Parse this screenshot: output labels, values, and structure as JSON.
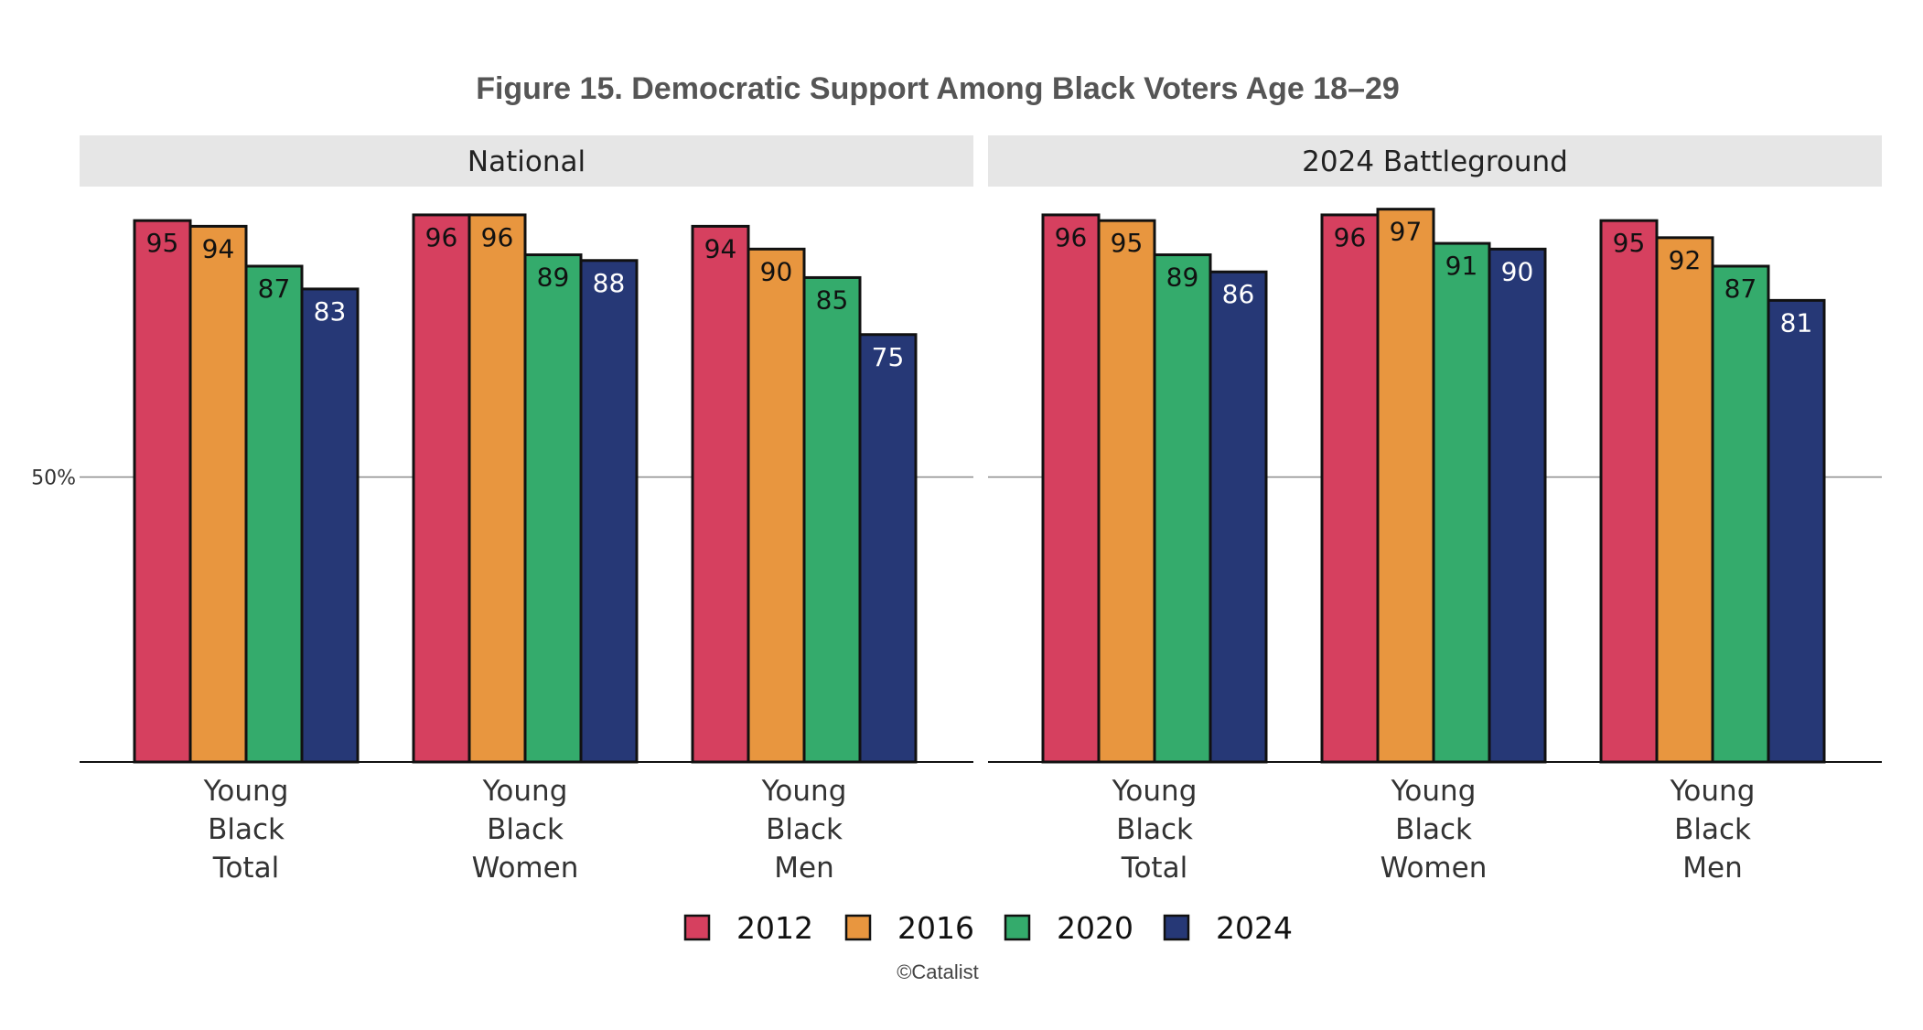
{
  "chart_data": {
    "type": "bar",
    "title": "Figure 15. Democratic Support Among Black Voters Age 18–29",
    "caption": "©Catalist",
    "y_tick_label": "50%",
    "y_tick_value": 50,
    "ylim": [
      0,
      100
    ],
    "legend_placement": "bottom-center",
    "series": [
      {
        "name": "2012",
        "color": "#d6405f"
      },
      {
        "name": "2016",
        "color": "#e8963f"
      },
      {
        "name": "2020",
        "color": "#34ab6c"
      },
      {
        "name": "2024",
        "color": "#263876"
      }
    ],
    "panels": [
      {
        "label": "National",
        "categories": [
          {
            "lines": [
              "Young",
              "Black",
              "Total"
            ],
            "values": [
              95,
              94,
              87,
              83
            ]
          },
          {
            "lines": [
              "Young",
              "Black",
              "Women"
            ],
            "values": [
              96,
              96,
              89,
              88
            ]
          },
          {
            "lines": [
              "Young",
              "Black",
              "Men"
            ],
            "values": [
              94,
              90,
              85,
              75
            ]
          }
        ]
      },
      {
        "label": "2024 Battleground",
        "categories": [
          {
            "lines": [
              "Young",
              "Black",
              "Total"
            ],
            "values": [
              96,
              95,
              89,
              86
            ]
          },
          {
            "lines": [
              "Young",
              "Black",
              "Women"
            ],
            "values": [
              96,
              97,
              91,
              90
            ]
          },
          {
            "lines": [
              "Young",
              "Black",
              "Men"
            ],
            "values": [
              95,
              92,
              87,
              81
            ]
          }
        ]
      }
    ]
  }
}
